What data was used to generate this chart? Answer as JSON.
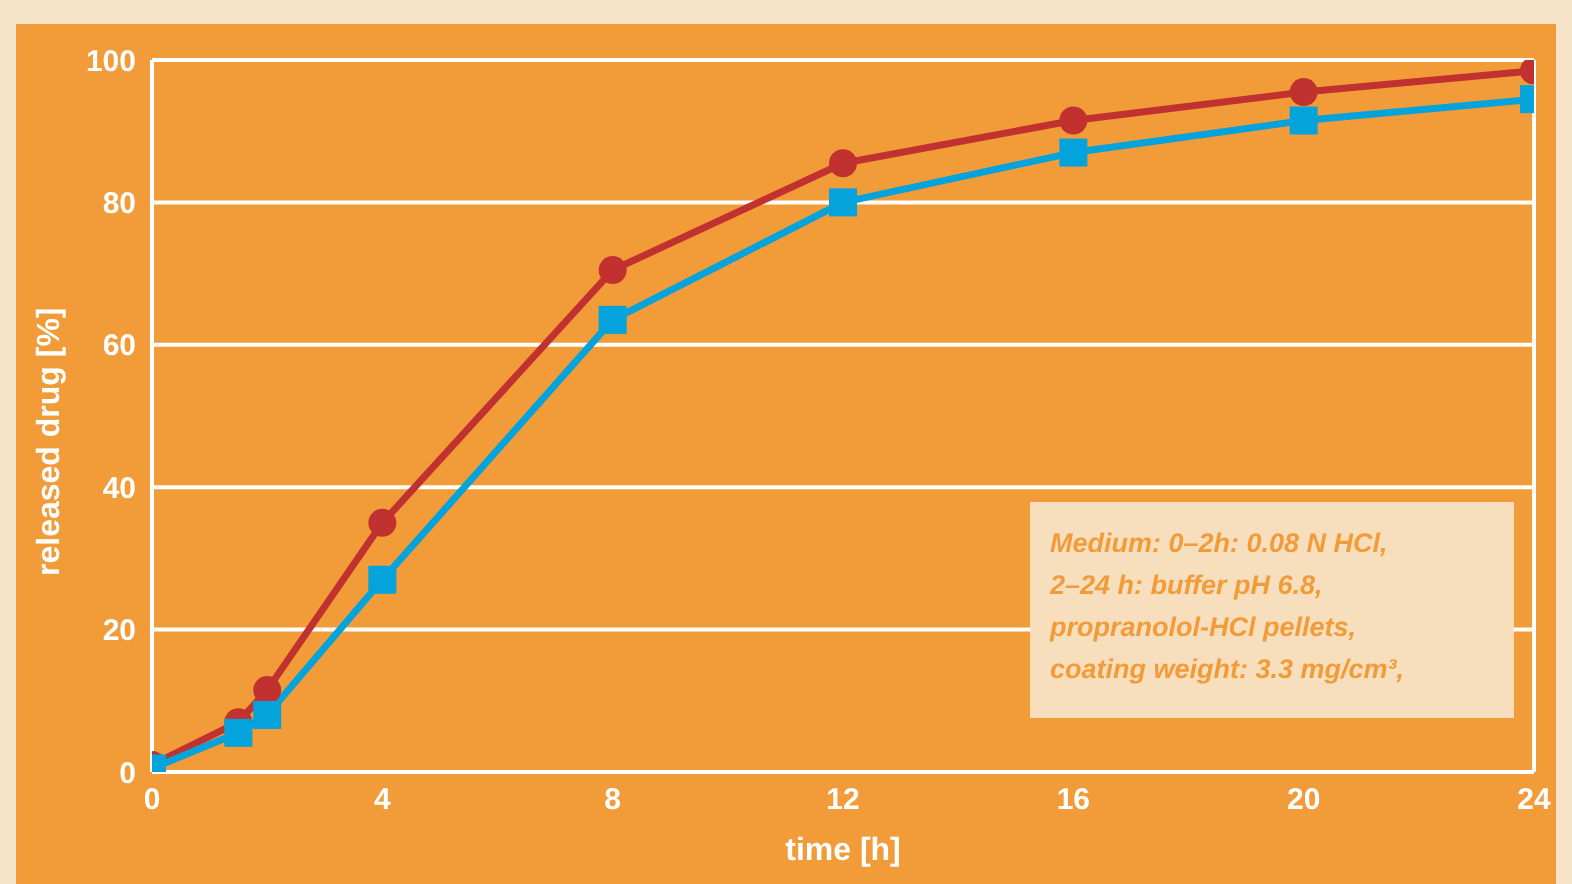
{
  "chart_data": {
    "type": "line",
    "xlabel": "time [h]",
    "ylabel": "released drug [%]",
    "xlim": [
      0,
      24
    ],
    "xticks": [
      0,
      4,
      8,
      12,
      16,
      20,
      24
    ],
    "ylim": [
      0,
      100
    ],
    "yticks": [
      0,
      20,
      40,
      60,
      80,
      100
    ],
    "grid": "y",
    "line_style": "solid",
    "series": [
      {
        "color": "#c1312f",
        "marker": "circle",
        "x": [
          0,
          1.5,
          2,
          4,
          8,
          12,
          16,
          20,
          24
        ],
        "values": [
          1,
          7,
          11.5,
          35,
          70.5,
          85.5,
          91.5,
          95.5,
          98.5
        ]
      },
      {
        "color": "#05a3dc",
        "marker": "square",
        "x": [
          0,
          1.5,
          2,
          4,
          8,
          12,
          16,
          20,
          24
        ],
        "values": [
          0.5,
          5.5,
          8,
          27,
          63.5,
          80,
          87,
          91.5,
          94.5
        ]
      }
    ],
    "annotations": [
      "Medium: 0–2h: 0.08 N HCl,",
      "2–24 h: buffer pH 6.8,",
      "propranolol-HCl pellets,",
      "coating weight: 3.3 mg/cm³,"
    ]
  }
}
